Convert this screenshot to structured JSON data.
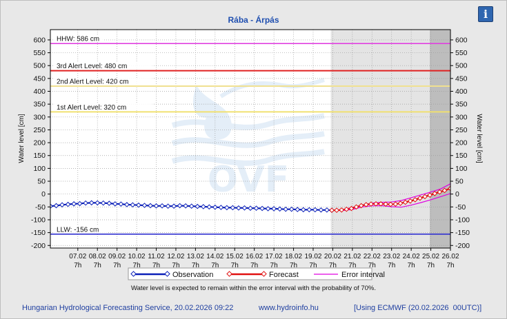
{
  "title": "Rába - Árpás",
  "info_icon": "i",
  "legend": {
    "observation": "Observation",
    "forecast": "Forecast",
    "error_interval": "Error interval"
  },
  "error_note": "Water level is expected to remain within the error interval with the probability of 70%.",
  "footer": {
    "source": "Hungarian Hydrological Forecasting Service, 20.02.2026 09:22",
    "url": "www.hydroinfo.hu",
    "model": "[Using ECMWF (20.02.2026  00UTC)]"
  },
  "colors": {
    "observation": "#0a1fb8",
    "forecast": "#e01010",
    "error_interval": "#e000e0",
    "hhw": "#e040e0",
    "alert3": "#e02020",
    "alert2": "#f0e090",
    "alert1": "#f0e070",
    "llw": "#3030d0",
    "title": "#1f4fb0"
  },
  "chart_data": {
    "type": "line",
    "title": "Rába - Árpás",
    "ylabel_left": "Water level [cm]",
    "ylabel_right": "Water level [cm]",
    "ylim": [
      -210,
      640
    ],
    "yticks": [
      -200,
      -150,
      -100,
      -50,
      0,
      50,
      100,
      150,
      200,
      250,
      300,
      350,
      400,
      450,
      500,
      550,
      600
    ],
    "x_range": [
      5.6,
      26.0
    ],
    "xticks": [
      {
        "x": 7,
        "label": "07.02",
        "sub": "7h"
      },
      {
        "x": 8,
        "label": "08.02",
        "sub": "7h"
      },
      {
        "x": 9,
        "label": "09.02",
        "sub": "7h"
      },
      {
        "x": 10,
        "label": "10.02",
        "sub": "7h"
      },
      {
        "x": 11,
        "label": "11.02",
        "sub": "7h"
      },
      {
        "x": 12,
        "label": "12.02",
        "sub": "7h"
      },
      {
        "x": 13,
        "label": "13.02",
        "sub": "7h"
      },
      {
        "x": 14,
        "label": "14.02",
        "sub": "7h"
      },
      {
        "x": 15,
        "label": "15.02",
        "sub": "7h"
      },
      {
        "x": 16,
        "label": "16.02",
        "sub": "7h"
      },
      {
        "x": 17,
        "label": "17.02",
        "sub": "7h"
      },
      {
        "x": 18,
        "label": "18.02",
        "sub": "7h"
      },
      {
        "x": 19,
        "label": "19.02",
        "sub": "7h"
      },
      {
        "x": 20,
        "label": "20.02",
        "sub": "7h"
      },
      {
        "x": 21,
        "label": "21.02",
        "sub": "7h"
      },
      {
        "x": 22,
        "label": "22.02",
        "sub": "7h"
      },
      {
        "x": 23,
        "label": "23.02",
        "sub": "7h"
      },
      {
        "x": 24,
        "label": "24.02",
        "sub": "7h"
      },
      {
        "x": 25,
        "label": "25.02",
        "sub": "7h"
      },
      {
        "x": 26,
        "label": "26.02",
        "sub": "7h"
      }
    ],
    "forecast_start": 19.9,
    "extended_forecast_start": 24.95,
    "levels": [
      {
        "name": "HHW",
        "label": "HHW: 586 cm",
        "value": 586,
        "color": "#e040e0"
      },
      {
        "name": "3rd Alert Level",
        "label": "3rd Alert Level: 480 cm",
        "value": 480,
        "color": "#e02020"
      },
      {
        "name": "2nd Alert Level",
        "label": "2nd Alert Level: 420 cm",
        "value": 420,
        "color": "#f0e090"
      },
      {
        "name": "1st Alert Level",
        "label": "1st Alert Level: 320 cm",
        "value": 320,
        "color": "#f0e070"
      },
      {
        "name": "LLW",
        "label": "LLW: -156 cm",
        "value": -156,
        "color": "#3030d0"
      }
    ],
    "series": [
      {
        "name": "Observation",
        "color": "#0a1fb8",
        "points": [
          [
            5.6,
            -47
          ],
          [
            5.9,
            -45
          ],
          [
            6.2,
            -42
          ],
          [
            6.5,
            -40
          ],
          [
            6.8,
            -38
          ],
          [
            7.1,
            -37
          ],
          [
            7.4,
            -35
          ],
          [
            7.7,
            -34
          ],
          [
            8.0,
            -34
          ],
          [
            8.3,
            -35
          ],
          [
            8.6,
            -36
          ],
          [
            8.9,
            -38
          ],
          [
            9.2,
            -39
          ],
          [
            9.5,
            -41
          ],
          [
            9.8,
            -42
          ],
          [
            10.1,
            -43
          ],
          [
            10.4,
            -44
          ],
          [
            10.7,
            -45
          ],
          [
            11.0,
            -46
          ],
          [
            11.3,
            -46
          ],
          [
            11.6,
            -47
          ],
          [
            11.9,
            -47
          ],
          [
            12.2,
            -45
          ],
          [
            12.5,
            -46
          ],
          [
            12.8,
            -47
          ],
          [
            13.1,
            -48
          ],
          [
            13.4,
            -49
          ],
          [
            13.7,
            -50
          ],
          [
            14.0,
            -51
          ],
          [
            14.3,
            -52
          ],
          [
            14.6,
            -53
          ],
          [
            14.9,
            -53
          ],
          [
            15.2,
            -54
          ],
          [
            15.5,
            -54
          ],
          [
            15.8,
            -55
          ],
          [
            16.1,
            -55
          ],
          [
            16.4,
            -56
          ],
          [
            16.7,
            -57
          ],
          [
            17.0,
            -57
          ],
          [
            17.3,
            -58
          ],
          [
            17.6,
            -59
          ],
          [
            17.9,
            -59
          ],
          [
            18.2,
            -60
          ],
          [
            18.5,
            -61
          ],
          [
            18.8,
            -61
          ],
          [
            19.1,
            -61
          ],
          [
            19.4,
            -62
          ],
          [
            19.7,
            -62
          ],
          [
            19.95,
            -63
          ]
        ]
      },
      {
        "name": "Forecast",
        "color": "#e01010",
        "points": [
          [
            19.95,
            -63
          ],
          [
            20.2,
            -63
          ],
          [
            20.45,
            -62
          ],
          [
            20.7,
            -59
          ],
          [
            20.95,
            -56
          ],
          [
            21.2,
            -50
          ],
          [
            21.45,
            -45
          ],
          [
            21.7,
            -41
          ],
          [
            21.95,
            -39
          ],
          [
            22.2,
            -38
          ],
          [
            22.45,
            -38
          ],
          [
            22.7,
            -39
          ],
          [
            22.95,
            -40
          ],
          [
            23.2,
            -39
          ],
          [
            23.45,
            -36
          ],
          [
            23.7,
            -32
          ],
          [
            23.95,
            -27
          ],
          [
            24.2,
            -22
          ],
          [
            24.45,
            -16
          ],
          [
            24.7,
            -10
          ],
          [
            24.95,
            -4
          ],
          [
            25.2,
            2
          ],
          [
            25.45,
            8
          ],
          [
            25.7,
            14
          ],
          [
            26.0,
            22
          ]
        ]
      },
      {
        "name": "Error interval upper",
        "color": "#e000e0",
        "points": [
          [
            19.95,
            -63
          ],
          [
            20.5,
            -60
          ],
          [
            21.0,
            -52
          ],
          [
            21.5,
            -43
          ],
          [
            22.0,
            -35
          ],
          [
            22.5,
            -32
          ],
          [
            23.0,
            -31
          ],
          [
            23.5,
            -25
          ],
          [
            24.0,
            -14
          ],
          [
            24.5,
            -3
          ],
          [
            25.0,
            8
          ],
          [
            25.5,
            20
          ],
          [
            26.0,
            40
          ]
        ]
      },
      {
        "name": "Error interval lower",
        "color": "#e000e0",
        "points": [
          [
            19.95,
            -63
          ],
          [
            20.5,
            -64
          ],
          [
            21.0,
            -60
          ],
          [
            21.5,
            -50
          ],
          [
            22.0,
            -46
          ],
          [
            22.5,
            -45
          ],
          [
            23.0,
            -49
          ],
          [
            23.5,
            -51
          ],
          [
            24.0,
            -43
          ],
          [
            24.5,
            -33
          ],
          [
            25.0,
            -22
          ],
          [
            25.5,
            -10
          ],
          [
            26.0,
            2
          ]
        ]
      }
    ]
  }
}
